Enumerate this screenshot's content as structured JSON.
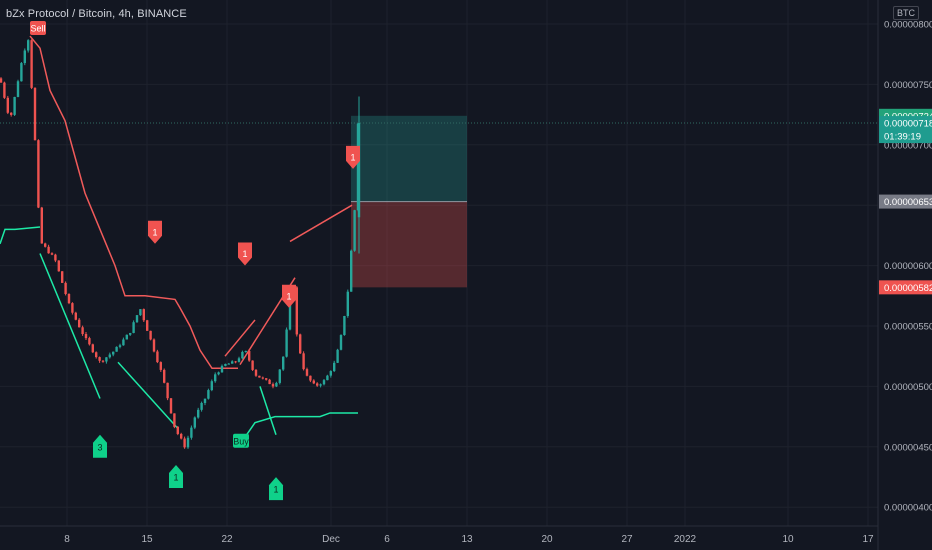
{
  "header": {
    "title": "bZx Protocol / Bitcoin, 4h, BINANCE",
    "currency": "BTC"
  },
  "colors": {
    "background": "#131722",
    "grid": "#1e222d",
    "up": "#26a69a",
    "down": "#ef5350",
    "sell_signal": "#f05350",
    "buy_signal": "#0fd18a",
    "upper_line": "#f05a5a",
    "lower_line": "#1de9a6"
  },
  "chart_data": {
    "type": "candlestick",
    "x_axis": {
      "ticks": [
        "8",
        "15",
        "22",
        "Dec",
        "6",
        "13",
        "20",
        "27",
        "2022",
        "10",
        "17"
      ],
      "range": [
        "2021-11-03",
        "2022-01-19"
      ]
    },
    "y_axis": {
      "ticks": [
        "0.00000800",
        "0.00000750",
        "0.00000700",
        "0.00000600",
        "0.00000550",
        "0.00000500",
        "0.00000450",
        "0.00000400"
      ],
      "range": [
        3.9e-06,
        8.1e-06
      ],
      "scale": "linear"
    },
    "price_labels": {
      "target": "0.00000724",
      "last": "0.00000718",
      "countdown": "01:39:19",
      "entry": "0.00000653",
      "stop": "0.00000582"
    },
    "position": {
      "entry": 6.53e-06,
      "target": 7.24e-06,
      "stop": 5.82e-06
    },
    "signals": [
      {
        "type": "sell",
        "label": "Sell",
        "value": 8.05e-06
      },
      {
        "type": "sell",
        "label": "1",
        "value": 6.28e-06
      },
      {
        "type": "sell",
        "label": "1",
        "value": 6.1e-06
      },
      {
        "type": "sell",
        "label": "1",
        "value": 5.75e-06
      },
      {
        "type": "sell",
        "label": "1",
        "value": 6.9e-06
      },
      {
        "type": "buy",
        "label": "3",
        "value": 4.5e-06
      },
      {
        "type": "buy",
        "label": "1",
        "value": 4.25e-06
      },
      {
        "type": "buy",
        "label": "Buy",
        "value": 4.55e-06
      },
      {
        "type": "buy",
        "label": "1",
        "value": 4.15e-06
      }
    ],
    "grid": true,
    "series_count": 1
  }
}
